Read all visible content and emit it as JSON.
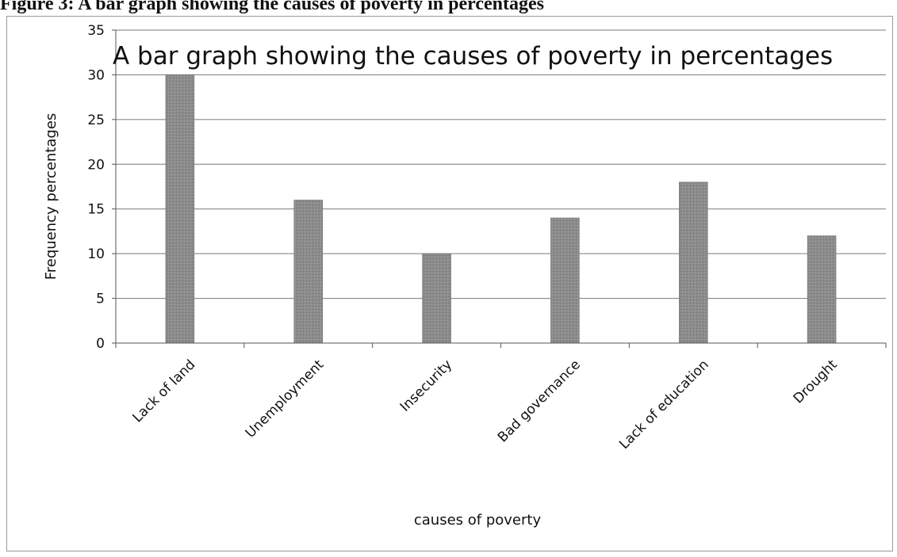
{
  "figure_caption": "Figure 3: A bar graph showing the causes of poverty in percentages",
  "colors": {
    "bar": "#8c8c8c",
    "grid": "#7a7a7a",
    "axis": "#555555",
    "frame": "#9a9a9a"
  },
  "chart_data": {
    "type": "bar",
    "title": "A bar graph showing the causes of poverty in percentages",
    "xlabel": "causes of poverty",
    "ylabel": "Frequency percentages",
    "categories": [
      "Lack of land",
      "Unemployment",
      "Insecurity",
      "Bad governance",
      "Lack of education",
      "Drought"
    ],
    "values": [
      30,
      16,
      10,
      14,
      18,
      12
    ],
    "ylim": [
      0,
      35
    ],
    "yticks": [
      0,
      5,
      10,
      15,
      20,
      25,
      30,
      35
    ],
    "grid": true,
    "legend": "none"
  }
}
